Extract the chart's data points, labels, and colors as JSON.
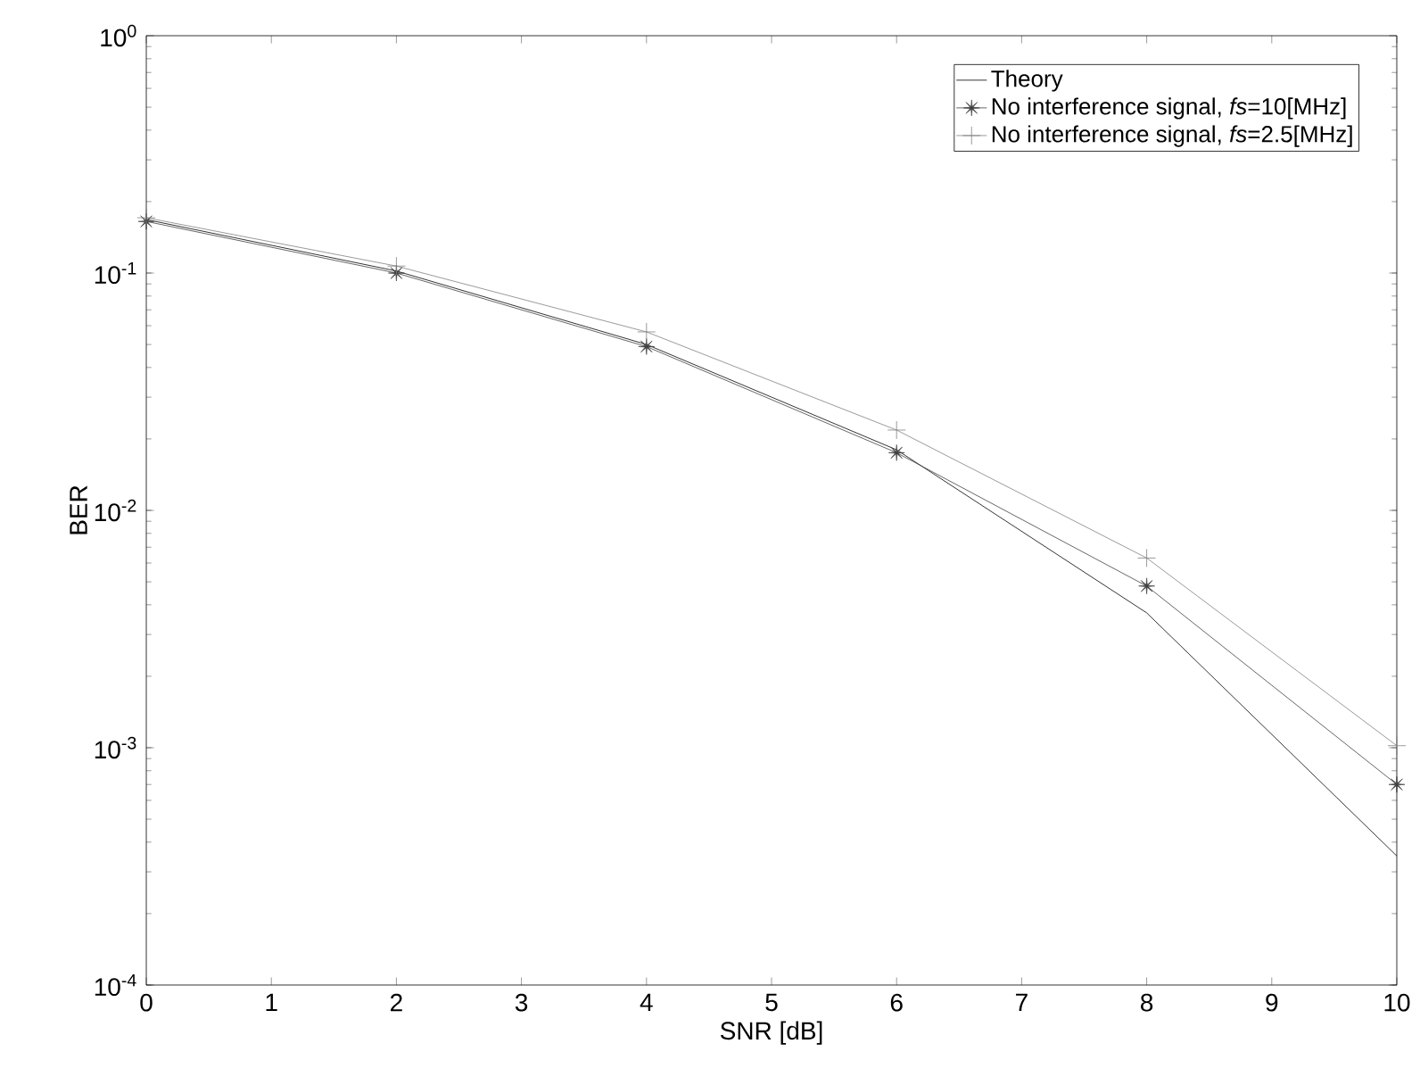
{
  "chart_data": {
    "type": "line",
    "xlabel": "SNR [dB]",
    "ylabel": "BER",
    "log": "y",
    "x": [
      0,
      2,
      4,
      6,
      8,
      10
    ],
    "series": [
      {
        "name": "Theory",
        "color": "#000000",
        "marker": "none",
        "values": [
          0.168,
          0.102,
          0.05,
          0.018,
          0.0037,
          0.00035
        ]
      },
      {
        "name": "No interference signal, *fs*=10[MHz]",
        "color": "#404040",
        "marker": "star",
        "values": [
          0.165,
          0.1,
          0.049,
          0.0175,
          0.0048,
          0.0007
        ]
      },
      {
        "name": "No interference signal, *fs*=2.5[MHz]",
        "color": "#808080",
        "marker": "cross",
        "values": [
          0.171,
          0.107,
          0.0565,
          0.0218,
          0.0063,
          0.00102
        ]
      }
    ],
    "xlim": [
      0,
      10
    ],
    "ylim": [
      0.0001,
      1
    ],
    "xticks": [
      0,
      1,
      2,
      3,
      4,
      5,
      6,
      7,
      8,
      9,
      10
    ],
    "yticks": [
      {
        "value": 0.0001,
        "label": "10$^{-4}$"
      },
      {
        "value": 0.001,
        "label": "10$^{-3}$"
      },
      {
        "value": 0.01,
        "label": "10$^{-2}$"
      },
      {
        "value": 0.1,
        "label": "10$^{-1}$"
      },
      {
        "value": 1,
        "label": "10$^{0}$"
      }
    ],
    "grid": false,
    "legend": "top right"
  }
}
